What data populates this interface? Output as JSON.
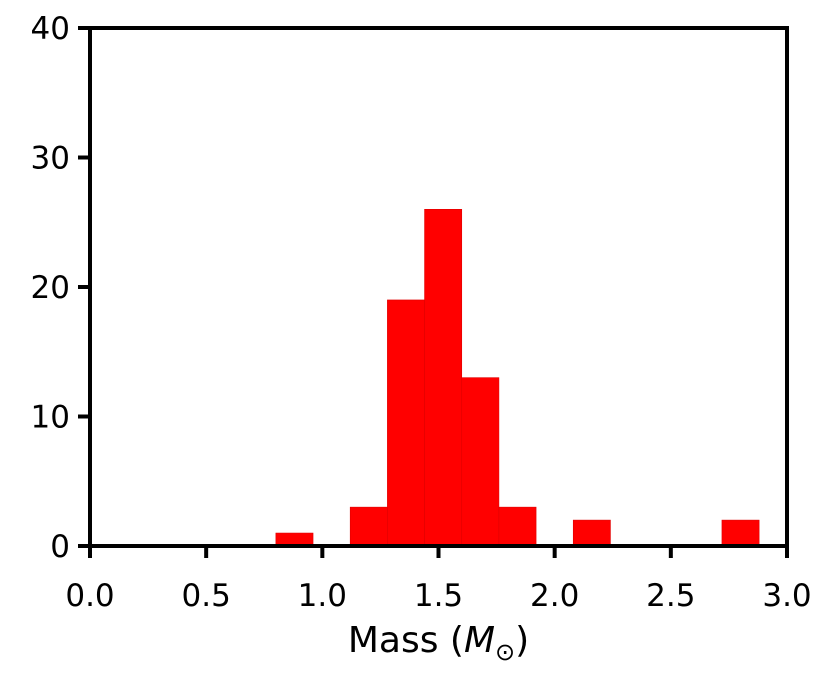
{
  "chart_data": {
    "type": "bar",
    "title": "",
    "xlabel": "Mass (",
    "xlabel_symbol": "M",
    "xlabel_subscript": "⊙",
    "xlabel_close": ")",
    "ylabel": "",
    "xlim": [
      0.0,
      3.0
    ],
    "ylim": [
      0,
      40
    ],
    "xticks": [
      "0.0",
      "0.5",
      "1.0",
      "1.5",
      "2.0",
      "2.5",
      "3.0"
    ],
    "yticks": [
      "0",
      "10",
      "20",
      "30",
      "40"
    ],
    "grid": false,
    "bin_width": 0.16,
    "bins": [
      {
        "x0": 0.8,
        "x1": 0.96,
        "count": 1
      },
      {
        "x0": 1.12,
        "x1": 1.28,
        "count": 3
      },
      {
        "x0": 1.28,
        "x1": 1.44,
        "count": 19
      },
      {
        "x0": 1.44,
        "x1": 1.6,
        "count": 26
      },
      {
        "x0": 1.6,
        "x1": 1.76,
        "count": 13
      },
      {
        "x0": 1.76,
        "x1": 1.92,
        "count": 3
      },
      {
        "x0": 2.08,
        "x1": 2.24,
        "count": 2
      },
      {
        "x0": 2.72,
        "x1": 2.88,
        "count": 2
      }
    ],
    "bar_color": "#ff0000"
  }
}
